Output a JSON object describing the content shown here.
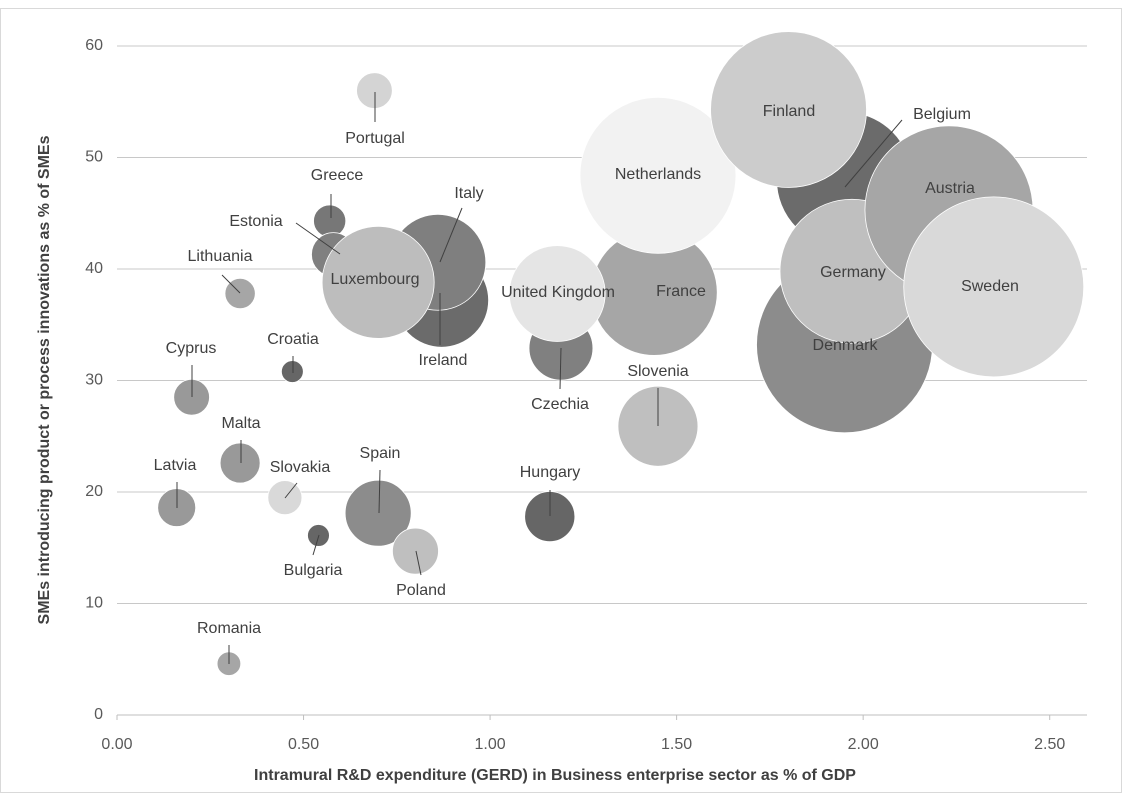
{
  "chart_data": {
    "type": "bubble",
    "xlabel": "Intramural R&D expenditure (GERD) in Business enterprise sector as % of GDP",
    "ylabel": "SMEs introducing product or process innovations as % of SMEs",
    "labels": [
      "Portugal",
      "Greece",
      "Estonia",
      "Ireland",
      "Italy",
      "Luxembourg",
      "Lithuania",
      "Croatia",
      "Cyprus",
      "Malta",
      "Slovakia",
      "Latvia",
      "Spain",
      "Bulgaria",
      "Poland",
      "Romania",
      "Hungary",
      "France",
      "Czechia",
      "United Kingdom",
      "Slovenia",
      "Netherlands",
      "Denmark",
      "Belgium",
      "Finland",
      "Germany",
      "Austria",
      "Sweden"
    ],
    "x": [
      0.69,
      0.57,
      0.58,
      0.87,
      0.86,
      0.7,
      0.33,
      0.47,
      0.2,
      0.33,
      0.45,
      0.16,
      0.7,
      0.54,
      0.8,
      0.3,
      1.16,
      1.44,
      1.19,
      1.18,
      1.45,
      1.45,
      1.95,
      1.95,
      1.8,
      1.97,
      2.23,
      2.35
    ],
    "values": [
      56,
      44.3,
      41.3,
      37.2,
      40.6,
      38.8,
      37.8,
      30.8,
      28.5,
      22.6,
      19.5,
      18.6,
      18.1,
      16.1,
      14.7,
      4.6,
      17.8,
      37.9,
      32.9,
      37.8,
      25.9,
      48.4,
      33.2,
      48.0,
      54.3,
      39.8,
      45.3,
      38.4
    ],
    "sizes": [
      3.2,
      2.6,
      4.8,
      22.1,
      23,
      31.4,
      2.3,
      1.2,
      3.2,
      4,
      2.9,
      3.6,
      10.9,
      1.2,
      5.3,
      1.4,
      6.3,
      39.7,
      10.2,
      23,
      16,
      60.8,
      77.4,
      46.2,
      60.8,
      51.8,
      70.6,
      81
    ],
    "colors": [
      "#d4d4d4",
      "#777777",
      "#808080",
      "#6b6b6b",
      "#7f7f7f",
      "#bdbdbd",
      "#a6a6a6",
      "#666666",
      "#999999",
      "#999999",
      "#d9d9d9",
      "#999999",
      "#8c8c8c",
      "#666666",
      "#bfbfbf",
      "#a6a6a6",
      "#666666",
      "#a6a6a6",
      "#808080",
      "#e5e5e5",
      "#bfbfbf",
      "#f2f2f2",
      "#8c8c8c",
      "#6b6b6b",
      "#cccccc",
      "#bfbfbf",
      "#a6a6a6",
      "#d9d9d9"
    ],
    "xlim": [
      0,
      2.6
    ],
    "xticks": [
      {
        "value": 0,
        "label": "0.00"
      },
      {
        "value": 0.5,
        "label": "0.50"
      },
      {
        "value": 1,
        "label": "1.00"
      },
      {
        "value": 1.5,
        "label": "1.50"
      },
      {
        "value": 2,
        "label": "2.00"
      },
      {
        "value": 2.5,
        "label": "2.50"
      }
    ],
    "ylim": [
      0,
      60
    ],
    "yticks": [
      0,
      10,
      20,
      30,
      40,
      50,
      60
    ],
    "grid": true
  }
}
